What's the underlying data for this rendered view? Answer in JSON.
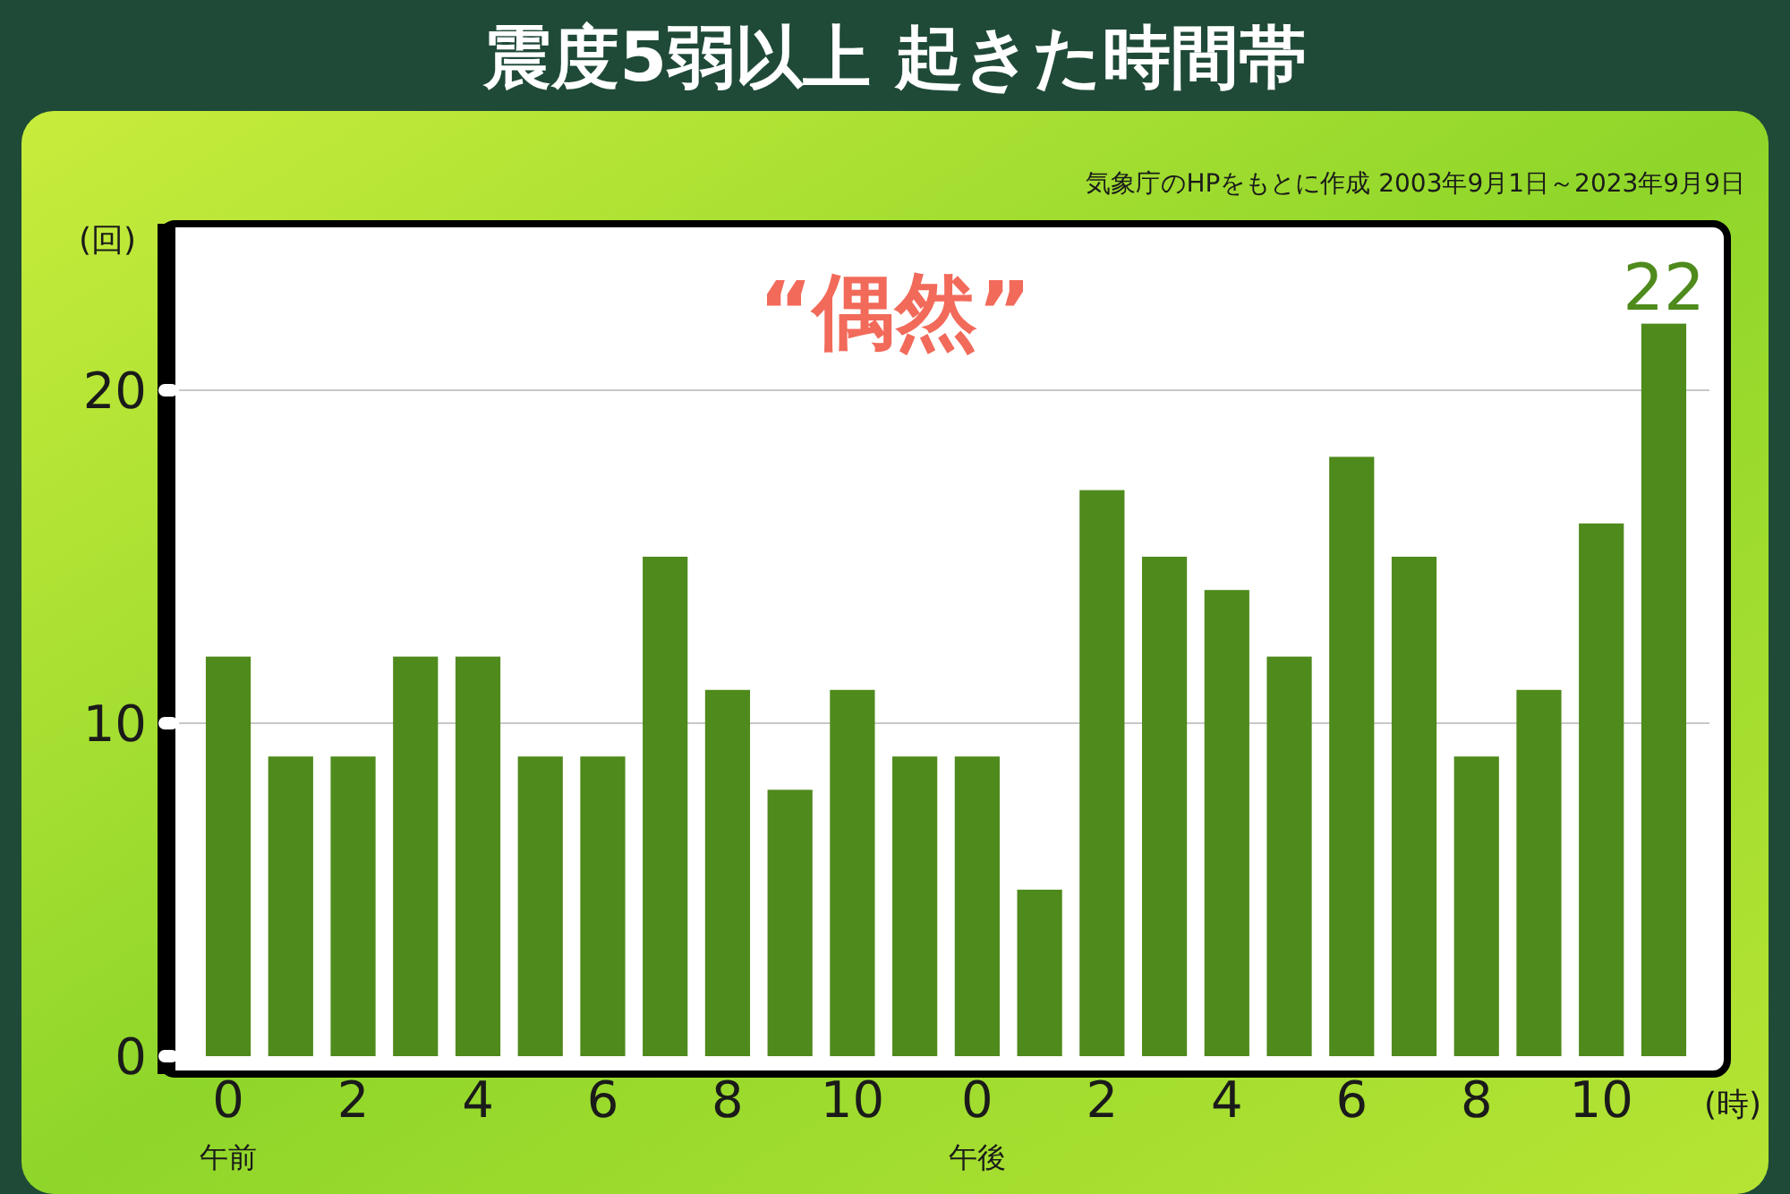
{
  "chart_data": {
    "type": "bar",
    "title": "震度5弱以上 起きた時間帯",
    "subtitle": "気象庁のHPをもとに作成 2003年9月1日～2023年9月9日",
    "ylabel": "(回)",
    "xlabel": "(時)",
    "categories": [
      "0\n午前",
      null,
      "2",
      null,
      "4",
      null,
      "6",
      null,
      "8",
      null,
      "10",
      null,
      "0\n午後",
      null,
      "2",
      null,
      "4",
      null,
      "6",
      null,
      "8",
      null,
      "10",
      null
    ],
    "values": [
      12,
      9,
      9,
      12,
      12,
      9,
      9,
      15,
      11,
      8,
      11,
      9,
      9,
      5,
      17,
      15,
      14,
      12,
      18,
      15,
      9,
      11,
      16,
      22
    ],
    "value_labels": [
      null,
      null,
      null,
      null,
      null,
      null,
      null,
      null,
      null,
      null,
      null,
      null,
      null,
      null,
      null,
      null,
      null,
      null,
      null,
      null,
      null,
      null,
      null,
      "22"
    ],
    "color": "#4f8a1c",
    "ylim": [
      0,
      25
    ],
    "yticks": [
      0,
      10,
      20
    ],
    "grid": "y",
    "annotations": [
      "“偶然”"
    ]
  }
}
